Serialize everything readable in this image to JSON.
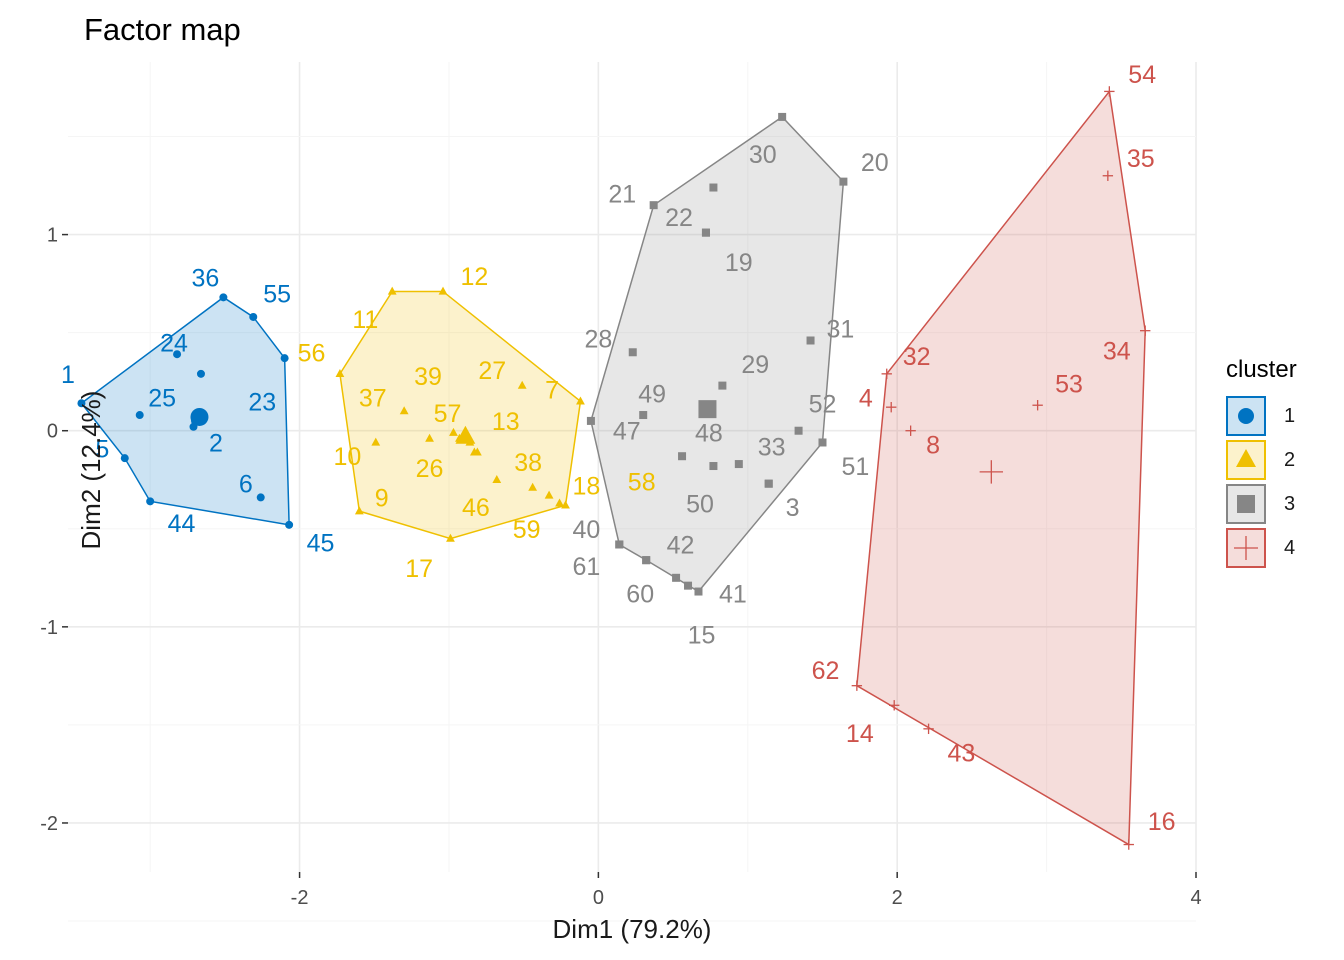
{
  "chart_data": {
    "type": "scatter",
    "title": "Factor map",
    "xlabel": "Dim1 (79.2%)",
    "ylabel": "Dim2 (12.4%)",
    "xlim": [
      -3.55,
      4.0
    ],
    "ylim": [
      -2.25,
      1.88
    ],
    "xticks": [
      -2,
      0,
      2,
      4
    ],
    "yticks": [
      1,
      0,
      -1,
      -2
    ],
    "grid": true,
    "legend": {
      "title": "cluster",
      "position": "right",
      "entries": [
        "1",
        "2",
        "3",
        "4"
      ]
    },
    "series": [
      {
        "name": "1",
        "color": "#0073C2",
        "marker": "circle",
        "centroid": [
          -2.67,
          0.07
        ],
        "hull": [
          [
            -3.46,
            0.14
          ],
          [
            -2.51,
            0.68
          ],
          [
            -2.31,
            0.58
          ],
          [
            -2.1,
            0.37
          ],
          [
            -2.07,
            -0.48
          ],
          [
            -3.0,
            -0.36
          ],
          [
            -3.17,
            -0.14
          ]
        ],
        "points": [
          {
            "label": "1",
            "x": -3.46,
            "y": 0.14
          },
          {
            "label": "36",
            "x": -2.51,
            "y": 0.68
          },
          {
            "label": "55",
            "x": -2.31,
            "y": 0.58
          },
          {
            "label": "24",
            "x": -2.82,
            "y": 0.39
          },
          {
            "label": "25",
            "x": -3.07,
            "y": 0.08
          },
          {
            "label": "23",
            "x": -2.1,
            "y": 0.37
          },
          {
            "label": "2",
            "x": -2.71,
            "y": 0.02
          },
          {
            "label": "5",
            "x": -3.17,
            "y": -0.14
          },
          {
            "label": "6",
            "x": -2.26,
            "y": -0.34
          },
          {
            "label": "44",
            "x": -3.0,
            "y": -0.36
          },
          {
            "label": "45",
            "x": -2.07,
            "y": -0.48
          },
          {
            "label": "",
            "x": -2.66,
            "y": 0.29
          },
          {
            "label": "",
            "x": -2.7,
            "y": 0.05
          }
        ]
      },
      {
        "name": "2",
        "color": "#EFC000",
        "marker": "triangle",
        "centroid": [
          -0.89,
          -0.03
        ],
        "hull": [
          [
            -1.73,
            0.29
          ],
          [
            -1.38,
            0.71
          ],
          [
            -1.04,
            0.71
          ],
          [
            -0.12,
            0.15
          ],
          [
            -0.22,
            -0.38
          ],
          [
            -0.99,
            -0.55
          ],
          [
            -1.6,
            -0.41
          ]
        ],
        "points": [
          {
            "label": "12",
            "x": -1.04,
            "y": 0.71
          },
          {
            "label": "11",
            "x": -1.38,
            "y": 0.71
          },
          {
            "label": "56",
            "x": -1.73,
            "y": 0.29
          },
          {
            "label": "37",
            "x": -1.3,
            "y": 0.1
          },
          {
            "label": "39",
            "x": -0.97,
            "y": -0.01
          },
          {
            "label": "27",
            "x": -0.51,
            "y": 0.23
          },
          {
            "label": "7",
            "x": -0.12,
            "y": 0.15
          },
          {
            "label": "57",
            "x": -0.93,
            "y": -0.04
          },
          {
            "label": "13",
            "x": -0.83,
            "y": -0.11
          },
          {
            "label": "10",
            "x": -1.49,
            "y": -0.06
          },
          {
            "label": "26",
            "x": -1.13,
            "y": -0.04
          },
          {
            "label": "38",
            "x": -0.68,
            "y": -0.25
          },
          {
            "label": "9",
            "x": -1.6,
            "y": -0.41
          },
          {
            "label": "46",
            "x": -0.81,
            "y": -0.11
          },
          {
            "label": "18",
            "x": -0.33,
            "y": -0.33
          },
          {
            "label": "58",
            "x": -0.26,
            "y": -0.37
          },
          {
            "label": "59",
            "x": -0.44,
            "y": -0.29
          },
          {
            "label": "17",
            "x": -0.99,
            "y": -0.55
          },
          {
            "label": "",
            "x": -0.22,
            "y": -0.38
          },
          {
            "label": "",
            "x": -0.86,
            "y": -0.06
          }
        ]
      },
      {
        "name": "3",
        "color": "#868686",
        "marker": "square",
        "centroid": [
          0.73,
          0.11
        ],
        "hull": [
          [
            -0.05,
            0.05
          ],
          [
            0.37,
            1.15
          ],
          [
            1.23,
            1.6
          ],
          [
            1.64,
            1.27
          ],
          [
            1.5,
            -0.06
          ],
          [
            0.67,
            -0.82
          ],
          [
            0.32,
            -0.66
          ],
          [
            0.14,
            -0.58
          ]
        ],
        "points": [
          {
            "label": "30",
            "x": 0.77,
            "y": 1.24
          },
          {
            "label": "21",
            "x": 0.37,
            "y": 1.15
          },
          {
            "label": "20",
            "x": 1.64,
            "y": 1.27
          },
          {
            "label": "22",
            "x": 0.72,
            "y": 1.01
          },
          {
            "label": "19",
            "x": 0.72,
            "y": 1.01
          },
          {
            "label": "31",
            "x": 1.42,
            "y": 0.46
          },
          {
            "label": "28",
            "x": 0.23,
            "y": 0.4
          },
          {
            "label": "29",
            "x": 0.83,
            "y": 0.23
          },
          {
            "label": "49",
            "x": 0.3,
            "y": 0.08
          },
          {
            "label": "52",
            "x": 1.34,
            "y": 0.0
          },
          {
            "label": "47",
            "x": 0.56,
            "y": -0.13
          },
          {
            "label": "48",
            "x": 0.77,
            "y": -0.18
          },
          {
            "label": "33",
            "x": 0.94,
            "y": -0.17
          },
          {
            "label": "50",
            "x": 1.14,
            "y": -0.27
          },
          {
            "label": "51",
            "x": 1.5,
            "y": -0.06
          },
          {
            "label": "3",
            "x": 1.14,
            "y": -0.27
          },
          {
            "label": "40",
            "x": 0.14,
            "y": -0.58
          },
          {
            "label": "42",
            "x": 0.32,
            "y": -0.66
          },
          {
            "label": "61",
            "x": 0.14,
            "y": -0.58
          },
          {
            "label": "60",
            "x": 0.32,
            "y": -0.66
          },
          {
            "label": "41",
            "x": 0.67,
            "y": -0.82
          },
          {
            "label": "15",
            "x": 0.52,
            "y": -0.75
          },
          {
            "label": "",
            "x": -0.05,
            "y": 0.05
          },
          {
            "label": "",
            "x": 1.23,
            "y": 1.6
          },
          {
            "label": "",
            "x": 0.6,
            "y": -0.79
          }
        ]
      },
      {
        "name": "4",
        "color": "#CD534C",
        "marker": "plus",
        "centroid": [
          2.63,
          -0.21
        ],
        "hull": [
          [
            1.73,
            -1.3
          ],
          [
            1.93,
            0.29
          ],
          [
            3.42,
            1.73
          ],
          [
            3.66,
            0.51
          ],
          [
            3.55,
            -2.11
          ]
        ],
        "points": [
          {
            "label": "54",
            "x": 3.42,
            "y": 1.73
          },
          {
            "label": "35",
            "x": 3.41,
            "y": 1.3
          },
          {
            "label": "34",
            "x": 3.66,
            "y": 0.51
          },
          {
            "label": "32",
            "x": 1.93,
            "y": 0.29
          },
          {
            "label": "53",
            "x": 2.94,
            "y": 0.13
          },
          {
            "label": "4",
            "x": 1.96,
            "y": 0.12
          },
          {
            "label": "8",
            "x": 2.09,
            "y": 0.0
          },
          {
            "label": "62",
            "x": 1.73,
            "y": -1.3
          },
          {
            "label": "14",
            "x": 1.98,
            "y": -1.4
          },
          {
            "label": "43",
            "x": 2.21,
            "y": -1.52
          },
          {
            "label": "16",
            "x": 3.55,
            "y": -2.11
          }
        ]
      }
    ]
  },
  "labels": {
    "1": [
      -3.46,
      0.14,
      -0.09,
      0.15
    ],
    "36": [
      -2.51,
      0.68,
      -0.12,
      0.1
    ],
    "55": [
      -2.31,
      0.58,
      0.16,
      0.12
    ],
    "24": [
      -2.82,
      0.39,
      -0.02,
      0.06
    ],
    "25": [
      -3.07,
      0.08,
      0.15,
      0.09
    ],
    "23": [
      -2.1,
      0.37,
      -0.15,
      -0.22
    ],
    "2": [
      -2.71,
      0.02,
      0.15,
      -0.08
    ],
    "5": [
      -3.17,
      -0.14,
      -0.15,
      0.05
    ],
    "6": [
      -2.26,
      -0.34,
      -0.1,
      0.07
    ],
    "44": [
      -3.0,
      -0.36,
      0.21,
      -0.11
    ],
    "45": [
      -2.07,
      -0.48,
      0.21,
      -0.09
    ],
    "12": [
      -1.04,
      0.71,
      0.21,
      0.08
    ],
    "11": [
      -1.38,
      0.71,
      -0.18,
      -0.14
    ],
    "56": [
      -1.73,
      0.29,
      -0.19,
      0.11
    ],
    "37": [
      -1.3,
      0.1,
      -0.21,
      0.07
    ],
    "39": [
      -0.97,
      -0.01,
      -0.17,
      0.29
    ],
    "27": [
      -0.51,
      0.23,
      -0.2,
      0.08
    ],
    "7": [
      -0.12,
      0.15,
      -0.19,
      0.06
    ],
    "57": [
      -0.93,
      -0.04,
      -0.08,
      0.13
    ],
    "13": [
      -0.83,
      -0.11,
      0.21,
      0.16
    ],
    "10": [
      -1.49,
      -0.06,
      -0.19,
      -0.07
    ],
    "26": [
      -1.13,
      -0.04,
      0.0,
      -0.15
    ],
    "38": [
      -0.68,
      -0.25,
      0.21,
      0.09
    ],
    "9": [
      -1.6,
      -0.41,
      0.15,
      0.07
    ],
    "46": [
      -0.81,
      -0.11,
      -0.01,
      -0.28
    ],
    "18": [
      -0.33,
      -0.33,
      0.25,
      0.05
    ],
    "58": [
      -0.26,
      -0.37,
      0.55,
      0.11
    ],
    "59": [
      -0.44,
      -0.29,
      -0.04,
      -0.21
    ],
    "17": [
      -0.99,
      -0.55,
      -0.21,
      -0.15
    ],
    "30": [
      0.77,
      1.24,
      0.33,
      0.17
    ],
    "21": [
      0.37,
      1.15,
      -0.21,
      0.06
    ],
    "20": [
      1.64,
      1.27,
      0.21,
      0.1
    ],
    "22": [
      0.72,
      1.01,
      -0.18,
      0.08
    ],
    "19": [
      0.72,
      1.01,
      0.22,
      -0.15
    ],
    "31": [
      1.42,
      0.46,
      0.2,
      0.06
    ],
    "28": [
      0.23,
      0.4,
      -0.23,
      0.07
    ],
    "29": [
      0.83,
      0.23,
      0.22,
      0.11
    ],
    "49": [
      0.3,
      0.08,
      0.06,
      0.11
    ],
    "52": [
      1.34,
      0.0,
      0.16,
      0.14
    ],
    "47": [
      0.56,
      -0.13,
      -0.37,
      0.13
    ],
    "48": [
      0.77,
      -0.18,
      -0.03,
      0.17
    ],
    "33": [
      0.94,
      -0.17,
      0.22,
      0.09
    ],
    "50": [
      1.14,
      -0.27,
      -0.46,
      -0.1
    ],
    "51": [
      1.5,
      -0.06,
      0.22,
      -0.12
    ],
    "3": [
      1.14,
      -0.27,
      0.16,
      -0.12
    ],
    "40": [
      0.14,
      -0.58,
      -0.22,
      0.08
    ],
    "42": [
      0.32,
      -0.66,
      0.23,
      0.08
    ],
    "61": [
      0.14,
      -0.58,
      -0.22,
      -0.11
    ],
    "60": [
      0.32,
      -0.66,
      -0.04,
      -0.17
    ],
    "41": [
      0.67,
      -0.82,
      0.23,
      -0.01
    ],
    "15": [
      0.52,
      -0.75,
      0.17,
      -0.29
    ],
    "54": [
      3.42,
      1.73,
      0.22,
      0.09
    ],
    "35": [
      3.41,
      1.3,
      0.22,
      0.09
    ],
    "34": [
      3.66,
      0.51,
      -0.19,
      -0.1
    ],
    "32": [
      1.93,
      0.29,
      0.2,
      0.09
    ],
    "53": [
      2.94,
      0.13,
      0.21,
      0.11
    ],
    "4": [
      1.96,
      0.12,
      -0.17,
      0.05
    ],
    "8": [
      2.09,
      0.0,
      0.15,
      -0.07
    ],
    "62": [
      1.73,
      -1.3,
      -0.21,
      0.08
    ],
    "14": [
      1.98,
      -1.4,
      -0.23,
      -0.14
    ],
    "43": [
      2.21,
      -1.52,
      0.22,
      -0.12
    ],
    "16": [
      3.55,
      -2.11,
      0.22,
      0.12
    ]
  }
}
